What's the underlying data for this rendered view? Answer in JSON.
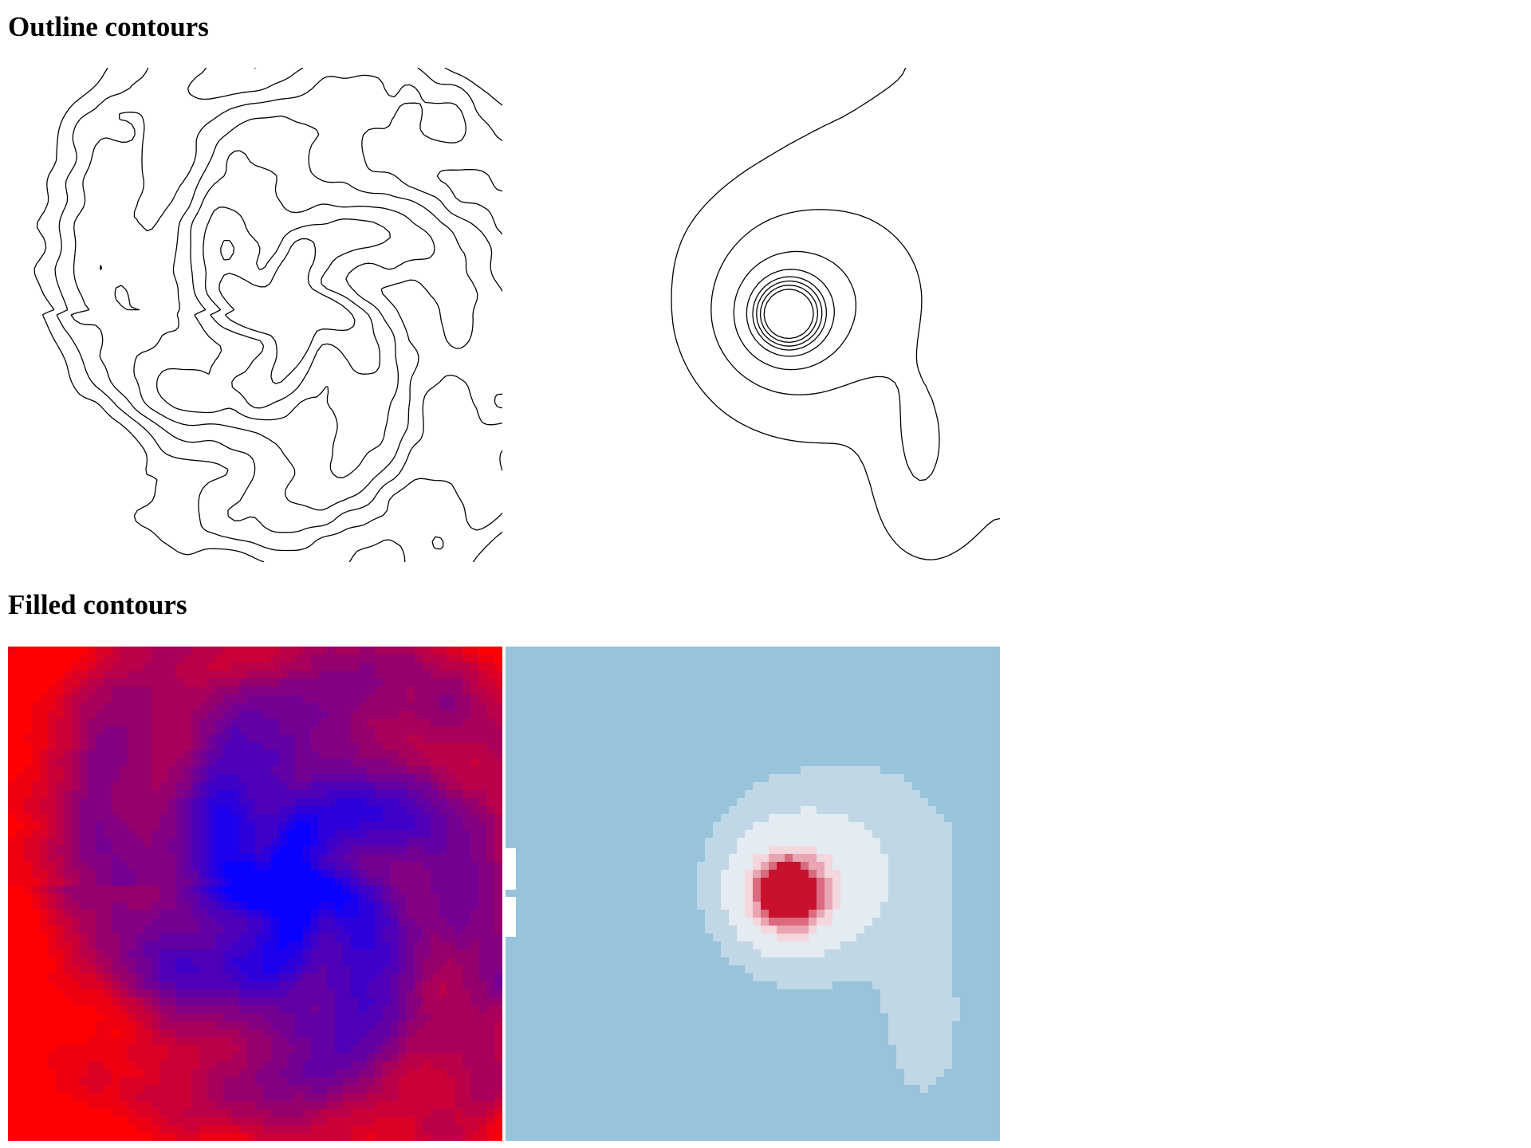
{
  "sections": {
    "outline": {
      "title": "Outline contours"
    },
    "filled": {
      "title": "Filled contours"
    }
  },
  "colors": {
    "outline_stroke": "#000000",
    "left_cool": "#0a00ff",
    "left_warm": "#ff0000",
    "right_outer": "#97c3db",
    "right_mid": "#c0d7e6",
    "right_inner": "#e4ebf2",
    "right_pink1": "#f3d7dc",
    "right_pink2": "#e9a6b2",
    "right_pink3": "#db6a7e",
    "right_core": "#c9112e"
  },
  "panels": [
    {
      "name": "outline-left",
      "style": "outline",
      "levels": 7
    },
    {
      "name": "outline-right",
      "style": "outline",
      "levels": 8
    },
    {
      "name": "filled-left",
      "style": "filled",
      "colormap": "blue-red"
    },
    {
      "name": "filled-right",
      "style": "filled",
      "colormap": "blue-white-red"
    }
  ]
}
